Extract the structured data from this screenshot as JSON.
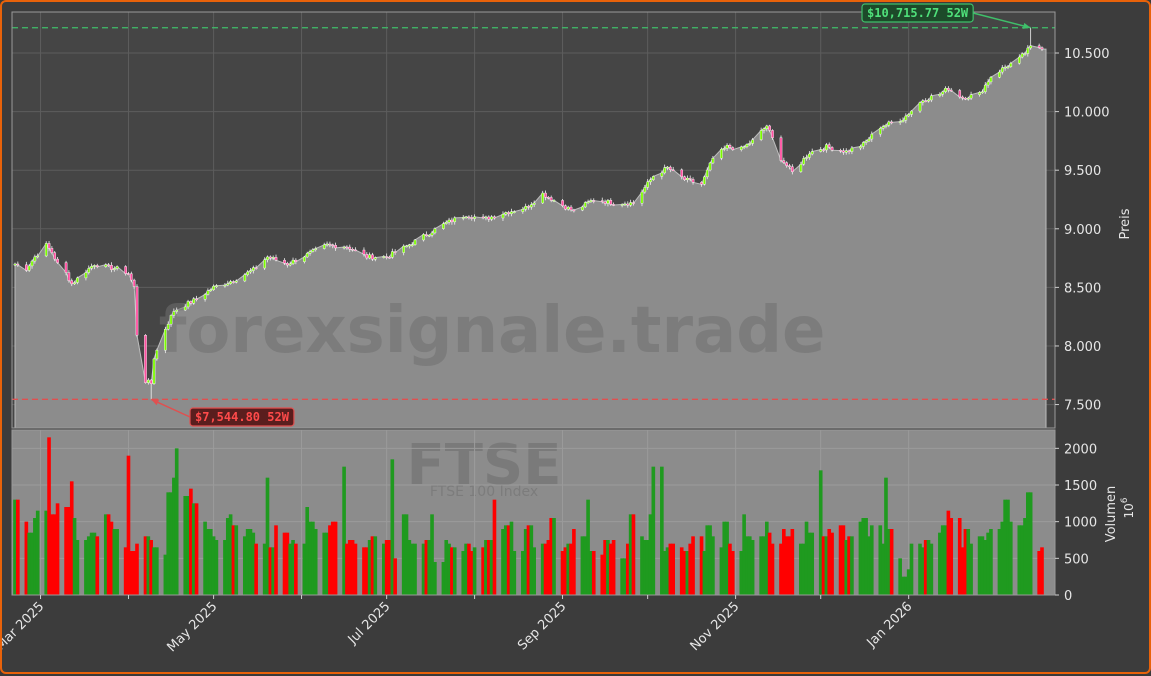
{
  "chart_data": {
    "type": "candlestick",
    "watermark": "forexsignale.trade",
    "symbol_watermark": "FTSE",
    "symbol_subtitle": "FTSE 100 Index",
    "price_axis": {
      "label": "Preis",
      "ylim": [
        7300,
        10850
      ],
      "ticks": [
        7500,
        8000,
        8500,
        9000,
        9500,
        10000,
        10500
      ],
      "tick_labels": [
        "7.500",
        "8.000",
        "8.500",
        "9.000",
        "9.500",
        "10.000",
        "10.500"
      ]
    },
    "volume_axis": {
      "label": "Volumen",
      "multiplier": "10",
      "multiplier_exp": "6",
      "ylim": [
        0,
        2250
      ],
      "ticks": [
        0,
        500,
        1000,
        1500,
        2000
      ],
      "tick_labels": [
        "0",
        "500",
        "1000",
        "1500",
        "2000"
      ]
    },
    "x_axis": {
      "tick_labels": [
        "Mar 2025",
        "May 2025",
        "Jul 2025",
        "Sep 2025",
        "Nov 2025",
        "Jan 2026"
      ],
      "tick_dates": [
        "2025-03-01",
        "2025-05-01",
        "2025-07-01",
        "2025-09-01",
        "2025-11-01",
        "2026-01-01"
      ],
      "minor_dates": [
        "2025-04-01",
        "2025-06-01",
        "2025-08-01",
        "2025-10-01",
        "2025-12-01"
      ],
      "start": "2025-02-20",
      "end": "2026-02-17"
    },
    "high_52w": {
      "value": 10715.77,
      "label": "$10,715.77 52W",
      "date": "2026-02-13"
    },
    "low_52w": {
      "value": 7544.8,
      "label": "$7,544.80 52W",
      "date": "2025-04-09"
    },
    "close_anchors": [
      [
        "2025-02-20",
        8700
      ],
      [
        "2025-02-24",
        8660
      ],
      [
        "2025-02-27",
        8760
      ],
      [
        "2025-03-03",
        8860
      ],
      [
        "2025-03-05",
        8800
      ],
      [
        "2025-03-07",
        8700
      ],
      [
        "2025-03-10",
        8620
      ],
      [
        "2025-03-12",
        8530
      ],
      [
        "2025-03-17",
        8640
      ],
      [
        "2025-03-20",
        8700
      ],
      [
        "2025-03-25",
        8670
      ],
      [
        "2025-03-28",
        8660
      ],
      [
        "2025-04-01",
        8620
      ],
      [
        "2025-04-03",
        8500
      ],
      [
        "2025-04-04",
        8100
      ],
      [
        "2025-04-07",
        7700
      ],
      [
        "2025-04-09",
        7680
      ],
      [
        "2025-04-10",
        7900
      ],
      [
        "2025-04-14",
        8150
      ],
      [
        "2025-04-17",
        8300
      ],
      [
        "2025-04-25",
        8400
      ],
      [
        "2025-05-01",
        8500
      ],
      [
        "2025-05-08",
        8560
      ],
      [
        "2025-05-15",
        8650
      ],
      [
        "2025-05-20",
        8760
      ],
      [
        "2025-05-27",
        8700
      ],
      [
        "2025-06-03",
        8780
      ],
      [
        "2025-06-10",
        8860
      ],
      [
        "2025-06-17",
        8850
      ],
      [
        "2025-06-24",
        8760
      ],
      [
        "2025-07-01",
        8760
      ],
      [
        "2025-07-08",
        8850
      ],
      [
        "2025-07-15",
        8950
      ],
      [
        "2025-07-22",
        9050
      ],
      [
        "2025-07-29",
        9120
      ],
      [
        "2025-08-04",
        9080
      ],
      [
        "2025-08-12",
        9140
      ],
      [
        "2025-08-19",
        9180
      ],
      [
        "2025-08-25",
        9300
      ],
      [
        "2025-09-01",
        9200
      ],
      [
        "2025-09-05",
        9150
      ],
      [
        "2025-09-12",
        9250
      ],
      [
        "2025-09-19",
        9220
      ],
      [
        "2025-09-26",
        9220
      ],
      [
        "2025-10-03",
        9450
      ],
      [
        "2025-10-08",
        9520
      ],
      [
        "2025-10-14",
        9420
      ],
      [
        "2025-10-20",
        9380
      ],
      [
        "2025-10-24",
        9600
      ],
      [
        "2025-10-29",
        9700
      ],
      [
        "2025-11-03",
        9680
      ],
      [
        "2025-11-07",
        9750
      ],
      [
        "2025-11-12",
        9880
      ],
      [
        "2025-11-17",
        9600
      ],
      [
        "2025-11-21",
        9480
      ],
      [
        "2025-11-27",
        9650
      ],
      [
        "2025-12-03",
        9700
      ],
      [
        "2025-12-10",
        9660
      ],
      [
        "2025-12-16",
        9720
      ],
      [
        "2025-12-22",
        9870
      ],
      [
        "2025-12-30",
        9940
      ],
      [
        "2026-01-06",
        10100
      ],
      [
        "2026-01-12",
        10150
      ],
      [
        "2026-01-15",
        10200
      ],
      [
        "2026-01-20",
        10120
      ],
      [
        "2026-01-26",
        10150
      ],
      [
        "2026-01-30",
        10300
      ],
      [
        "2026-02-04",
        10380
      ],
      [
        "2026-02-09",
        10450
      ],
      [
        "2026-02-13",
        10550
      ],
      [
        "2026-02-17",
        10550
      ]
    ],
    "volume_samples": [
      1300,
      1000,
      850,
      1050,
      1150,
      2150,
      1100,
      1250,
      1200,
      1550,
      1050,
      750,
      800,
      850,
      800,
      1100,
      1000,
      900,
      650,
      1900,
      600,
      700,
      800,
      750,
      650,
      550,
      1400,
      1600,
      2000,
      1350,
      1450,
      1250,
      1000,
      900,
      800,
      750,
      1050,
      1100,
      950,
      800,
      900,
      850,
      700,
      1600,
      650,
      950,
      850,
      700,
      750,
      700,
      1200,
      1000,
      900,
      850,
      950,
      1000,
      1750,
      700,
      750,
      700,
      650,
      750,
      800,
      700,
      750,
      1850,
      500,
      1100,
      750,
      700,
      700,
      750,
      1100,
      450,
      750,
      700,
      650,
      600,
      700,
      600,
      650,
      750,
      750,
      1300,
      900,
      950,
      1000,
      600,
      900,
      950,
      650,
      700,
      750,
      1050,
      600,
      650,
      700,
      900,
      800,
      1300,
      600,
      550,
      750,
      700,
      750,
      500,
      700,
      1100,
      800,
      750,
      1100,
      1750,
      600,
      650,
      700,
      650,
      600,
      700,
      800,
      600,
      950,
      800,
      650,
      1000,
      700,
      600,
      1100,
      800,
      750,
      800,
      1000,
      850,
      700,
      900,
      800,
      900,
      700,
      1000,
      850,
      1700,
      800,
      900,
      850,
      950,
      750,
      800,
      1000,
      1050,
      800,
      950,
      700,
      1600,
      900,
      500,
      250,
      350,
      700,
      650,
      750,
      700,
      850,
      950,
      1150,
      1050,
      650,
      900,
      700,
      800,
      750,
      850,
      900,
      1000,
      1300,
      1000,
      950,
      1050,
      1400,
      600,
      650
    ],
    "colors": {
      "up": "#1f9a1f",
      "down": "#ff0000",
      "area": "#8c8c8c",
      "plot_bg": "#454545",
      "high_line": "#3fbf6a",
      "low_line": "#e05050"
    }
  }
}
